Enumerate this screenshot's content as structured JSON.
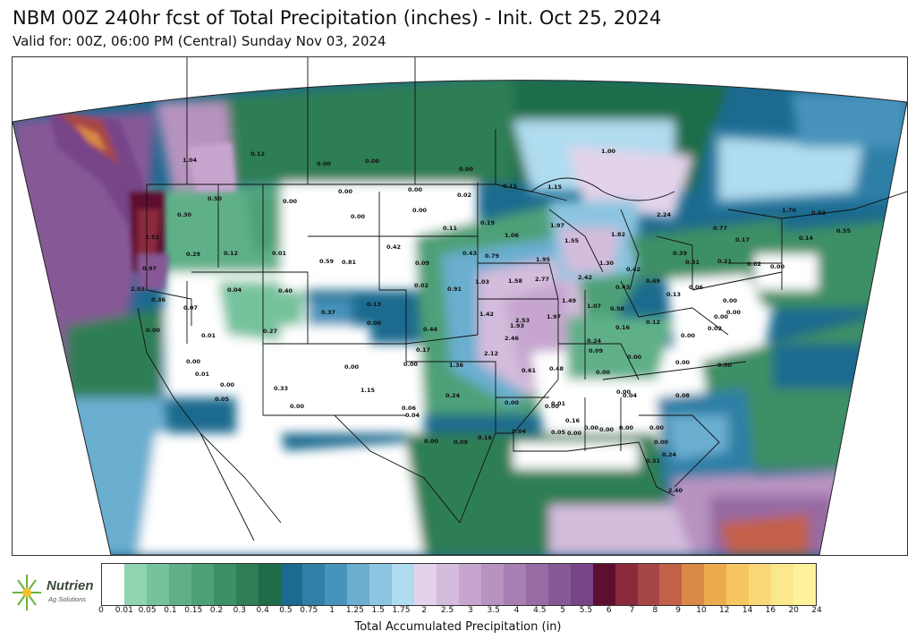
{
  "header": {
    "title": "NBM 00Z 240hr fcst of Total Precipitation (inches) - Init. Oct 25, 2024",
    "subtitle": "Valid for: 00Z, 06:00 PM (Central) Sunday Nov 03, 2024"
  },
  "logo": {
    "name": "Nutrien",
    "sub": "Ag Solutions"
  },
  "colorbar": {
    "label": "Total Accumulated Precipitation (in)",
    "ticks": [
      "0",
      "0.01",
      "0.05",
      "0.1",
      "0.15",
      "0.2",
      "0.3",
      "0.4",
      "0.5",
      "0.75",
      "1",
      "1.25",
      "1.5",
      "1.75",
      "2",
      "2.5",
      "3",
      "3.5",
      "4",
      "4.5",
      "5",
      "5.5",
      "6",
      "7",
      "8",
      "9",
      "10",
      "12",
      "14",
      "16",
      "20",
      "24"
    ],
    "colors": [
      "#ffffff",
      "#8fd3b0",
      "#76c29c",
      "#5fb088",
      "#4ea077",
      "#3d8f65",
      "#2f7e55",
      "#1f6d48",
      "#1c6a8f",
      "#2f7fa6",
      "#4793bb",
      "#6aaed0",
      "#8cc5e0",
      "#b0dcef",
      "#e3d3ea",
      "#d4bcdc",
      "#c6a6cf",
      "#b793c0",
      "#a77fb2",
      "#976ba3",
      "#875896",
      "#774587",
      "#5e0f2f",
      "#8b2a3d",
      "#a74646",
      "#c26048",
      "#d98845",
      "#ecab4d",
      "#f5c560",
      "#f9d977",
      "#fbe78c",
      "#fef39b"
    ]
  },
  "map": {
    "labels": [
      {
        "v": "1.04"
      },
      {
        "v": "0.12"
      },
      {
        "v": "0.00"
      },
      {
        "v": "0.00"
      },
      {
        "v": "0.00"
      },
      {
        "v": "1.00"
      },
      {
        "v": "0.50"
      },
      {
        "v": "0.00"
      },
      {
        "v": "0.00"
      },
      {
        "v": "0.00"
      },
      {
        "v": "0.00"
      },
      {
        "v": "0.00"
      },
      {
        "v": "0.02"
      },
      {
        "v": "0.15"
      },
      {
        "v": "1.15"
      },
      {
        "v": "2.24"
      },
      {
        "v": "1.70"
      },
      {
        "v": "0.53"
      },
      {
        "v": "0.30"
      },
      {
        "v": "2.52"
      },
      {
        "v": "0.11"
      },
      {
        "v": "0.19"
      },
      {
        "v": "1.06"
      },
      {
        "v": "1.97"
      },
      {
        "v": "1.55"
      },
      {
        "v": "1.82"
      },
      {
        "v": "0.77"
      },
      {
        "v": "0.17"
      },
      {
        "v": "0.14"
      },
      {
        "v": "0.55"
      },
      {
        "v": "0.97"
      },
      {
        "v": "0.29"
      },
      {
        "v": "0.12"
      },
      {
        "v": "0.01"
      },
      {
        "v": "0.59"
      },
      {
        "v": "0.81"
      },
      {
        "v": "0.42"
      },
      {
        "v": "0.09"
      },
      {
        "v": "0.43"
      },
      {
        "v": "0.79"
      },
      {
        "v": "1.95"
      },
      {
        "v": "1.30"
      },
      {
        "v": "0.42"
      },
      {
        "v": "0.39"
      },
      {
        "v": "0.31"
      },
      {
        "v": "0.21"
      },
      {
        "v": "0.02"
      },
      {
        "v": "0.00"
      },
      {
        "v": "2.03"
      },
      {
        "v": "0.04"
      },
      {
        "v": "0.40"
      },
      {
        "v": "0.02"
      },
      {
        "v": "0.91"
      },
      {
        "v": "1.03"
      },
      {
        "v": "1.58"
      },
      {
        "v": "2.77"
      },
      {
        "v": "2.42"
      },
      {
        "v": "0.43"
      },
      {
        "v": "0.49"
      },
      {
        "v": "0.13"
      },
      {
        "v": "0.06"
      },
      {
        "v": "0.36"
      },
      {
        "v": "0.07"
      },
      {
        "v": "0.13"
      },
      {
        "v": "1.49"
      },
      {
        "v": "1.07"
      },
      {
        "v": "0.58"
      },
      {
        "v": "0.00"
      },
      {
        "v": "0.37"
      },
      {
        "v": "0.00"
      },
      {
        "v": "1.42"
      },
      {
        "v": "1.93"
      },
      {
        "v": "2.53"
      },
      {
        "v": "1.97"
      },
      {
        "v": "0.12"
      },
      {
        "v": "0.00"
      },
      {
        "v": "0.00"
      },
      {
        "v": "0.02"
      },
      {
        "v": "0.00"
      },
      {
        "v": "0.01"
      },
      {
        "v": "0.27"
      },
      {
        "v": "0.44"
      },
      {
        "v": "2.46"
      },
      {
        "v": "0.16"
      },
      {
        "v": "0.00"
      },
      {
        "v": "0.24"
      },
      {
        "v": "0.17"
      },
      {
        "v": "2.12"
      },
      {
        "v": "0.09"
      },
      {
        "v": "0.00"
      },
      {
        "v": "0.00"
      },
      {
        "v": "0.01"
      },
      {
        "v": "0.00"
      },
      {
        "v": "0.00"
      },
      {
        "v": "1.36"
      },
      {
        "v": "0.61"
      },
      {
        "v": "0.48"
      },
      {
        "v": "0.00"
      },
      {
        "v": "0.00"
      },
      {
        "v": "0.00"
      },
      {
        "v": "0.00"
      },
      {
        "v": "0.33"
      },
      {
        "v": "1.15"
      },
      {
        "v": "0.24"
      },
      {
        "v": "0.00"
      },
      {
        "v": "0.00"
      },
      {
        "v": "0.05"
      },
      {
        "v": "0.08"
      },
      {
        "v": "0.00"
      },
      {
        "v": "0.06"
      },
      {
        "v": "0.01"
      },
      {
        "v": "0.00"
      },
      {
        "v": "0.04"
      },
      {
        "v": "0.04"
      },
      {
        "v": "0.00"
      },
      {
        "v": "0.00"
      },
      {
        "v": "0.00"
      },
      {
        "v": "0.09"
      },
      {
        "v": "0.16"
      },
      {
        "v": "0.04"
      },
      {
        "v": "0.05"
      },
      {
        "v": "0.00"
      },
      {
        "v": "0.00"
      },
      {
        "v": "0.00"
      },
      {
        "v": "0.00"
      },
      {
        "v": "0.16"
      },
      {
        "v": "0.24"
      },
      {
        "v": "0.31"
      },
      {
        "v": "2.40"
      }
    ]
  }
}
